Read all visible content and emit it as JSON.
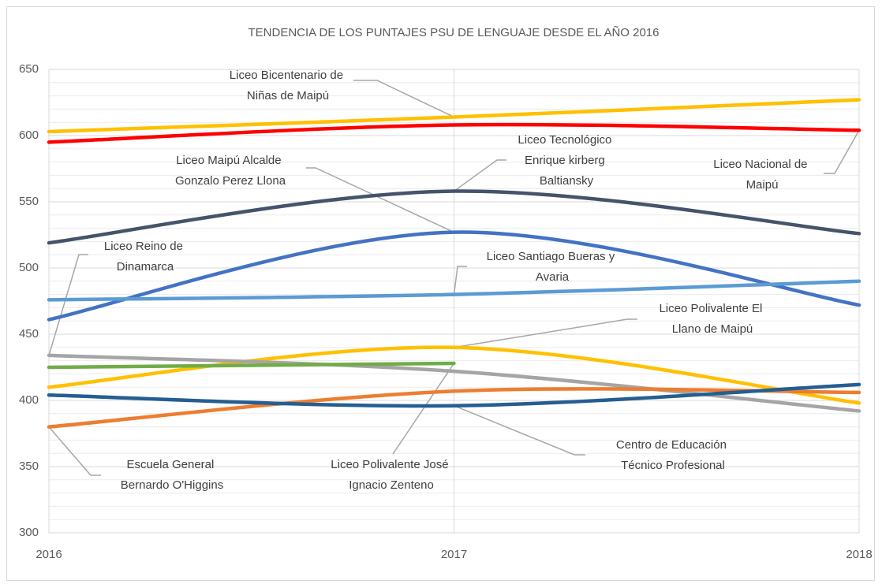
{
  "chart_data": {
    "type": "line",
    "title": "TENDENCIA DE LOS PUNTAJES PSU DE LENGUAJE DESDE EL AÑO 2016",
    "x": [
      2016,
      2017,
      2018
    ],
    "xlim": [
      2016,
      2018
    ],
    "xticks": [
      2016,
      2017,
      2018
    ],
    "ylim": [
      300,
      650
    ],
    "yticks": [
      300,
      350,
      400,
      450,
      500,
      550,
      600,
      650
    ],
    "grid": true,
    "minor_grid_step": 10,
    "smooth": true,
    "series": [
      {
        "name": "Liceo Bicentenario de Niñas de Maipú",
        "color": "#ffc000",
        "values": [
          603,
          614,
          627
        ]
      },
      {
        "name": "Liceo Nacional de Maipú",
        "color": "#ff0000",
        "values": [
          595,
          608,
          604
        ]
      },
      {
        "name": "Liceo Tecnológico Enrique kirberg Baltiansky",
        "color": "#44546a",
        "values": [
          519,
          558,
          526
        ]
      },
      {
        "name": "Liceo Maipú Alcalde Gonzalo Perez Llona",
        "color": "#4472c4",
        "values": [
          461,
          527,
          472
        ]
      },
      {
        "name": "Liceo Santiago Bueras y Avaria",
        "color": "#5b9bd5",
        "values": [
          476,
          480,
          490
        ]
      },
      {
        "name": "Liceo Polivalente El Llano de Maipú",
        "color": "#ffc000",
        "values": [
          410,
          440,
          398
        ]
      },
      {
        "name": "Liceo Reino de Dinamarca",
        "color": "#a5a5a5",
        "values": [
          434,
          422,
          392
        ]
      },
      {
        "name": "Liceo Polivalente José Ignacio Zenteno",
        "color": "#70ad47",
        "values": [
          425,
          428,
          null
        ]
      },
      {
        "name": "Escuela General Bernardo O'Higgins",
        "color": "#ed7d31",
        "values": [
          380,
          407,
          406
        ]
      },
      {
        "name": "Centro de Educación Técnico Profesional",
        "color": "#255e91",
        "values": [
          404,
          396,
          412
        ]
      }
    ]
  }
}
